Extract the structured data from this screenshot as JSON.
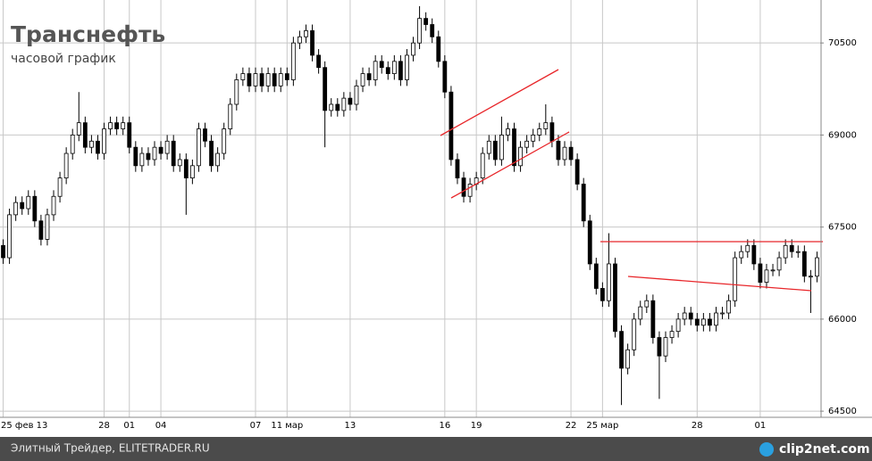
{
  "chart_data": {
    "type": "candlestick",
    "title": "Транснефть",
    "subtitle": "часовой график",
    "categories": [
      "25 фев 13",
      null,
      null,
      null,
      null,
      null,
      null,
      null,
      null,
      null,
      null,
      null,
      null,
      null,
      null,
      null,
      "28",
      null,
      null,
      null,
      "01",
      null,
      null,
      null,
      null,
      "04",
      null,
      null,
      null,
      null,
      null,
      null,
      null,
      null,
      null,
      null,
      null,
      null,
      null,
      null,
      "07",
      null,
      null,
      null,
      null,
      "11 мар",
      null,
      null,
      null,
      null,
      null,
      null,
      null,
      null,
      null,
      "13",
      null,
      null,
      null,
      null,
      null,
      null,
      null,
      null,
      null,
      null,
      null,
      null,
      null,
      null,
      "16",
      null,
      null,
      null,
      null,
      "19",
      null,
      null,
      null,
      null,
      null,
      null,
      null,
      null,
      null,
      null,
      null,
      null,
      null,
      null,
      "22",
      null,
      null,
      null,
      null,
      "25 мар",
      null,
      null,
      null,
      null,
      null,
      null,
      null,
      null,
      null,
      null,
      null,
      null,
      null,
      null,
      "28",
      null,
      null,
      null,
      null,
      null,
      null,
      null,
      null,
      null,
      "01",
      null,
      null,
      null,
      null,
      null,
      null,
      null,
      null,
      null
    ],
    "open": [
      67200,
      67000,
      67700,
      67900,
      67800,
      68000,
      67600,
      67300,
      67700,
      68000,
      68300,
      68700,
      69000,
      69200,
      68800,
      68900,
      68700,
      69100,
      69200,
      69100,
      69200,
      68800,
      68500,
      68700,
      68600,
      68800,
      68700,
      68900,
      68500,
      68600,
      68300,
      68500,
      69100,
      68900,
      68500,
      68700,
      69100,
      69500,
      69900,
      70000,
      69800,
      70000,
      69800,
      70000,
      69800,
      70000,
      69900,
      70500,
      70600,
      70700,
      70300,
      70100,
      69400,
      69500,
      69400,
      69600,
      69500,
      69800,
      70000,
      69900,
      70200,
      70100,
      70000,
      70200,
      69900,
      70300,
      70500,
      70900,
      70800,
      70600,
      70200,
      69700,
      68600,
      68300,
      68000,
      68200,
      68300,
      68700,
      68900,
      68600,
      69000,
      69100,
      68500,
      68800,
      68900,
      69000,
      69100,
      69200,
      68900,
      68600,
      68800,
      68600,
      68200,
      67600,
      66900,
      66500,
      66300,
      66900,
      65800,
      65200,
      65500,
      66000,
      66200,
      66300,
      65700,
      65400,
      65700,
      65800,
      66000,
      66100,
      66000,
      65900,
      66000,
      65900,
      66100,
      66100,
      66300,
      67000,
      67100,
      67200,
      66900,
      66600,
      66800,
      66800,
      67000,
      67200,
      67100,
      67100,
      66700,
      66700
    ],
    "high": [
      67300,
      67800,
      68000,
      68000,
      68100,
      68100,
      67700,
      67800,
      68100,
      68400,
      68800,
      69100,
      69700,
      69300,
      69000,
      69000,
      69200,
      69300,
      69300,
      69300,
      69300,
      68900,
      68800,
      68800,
      68900,
      68900,
      69000,
      69000,
      68700,
      68700,
      68600,
      69200,
      69200,
      69000,
      68800,
      69200,
      69600,
      70000,
      70100,
      70100,
      70100,
      70100,
      70100,
      70100,
      70100,
      70100,
      70600,
      70700,
      70800,
      70800,
      70400,
      70200,
      69600,
      69600,
      69700,
      69700,
      69900,
      70100,
      70100,
      70300,
      70300,
      70200,
      70300,
      70300,
      70400,
      70600,
      71100,
      71000,
      70900,
      70700,
      70300,
      69800,
      68700,
      68400,
      68300,
      68400,
      68800,
      69000,
      69000,
      69300,
      69200,
      69200,
      68900,
      69000,
      69100,
      69200,
      69500,
      69300,
      69000,
      68900,
      68900,
      68700,
      68300,
      67700,
      67000,
      66600,
      67400,
      67000,
      65900,
      65600,
      66100,
      66300,
      66400,
      66400,
      65800,
      65800,
      65900,
      66100,
      66200,
      66200,
      66100,
      66100,
      66100,
      66200,
      66200,
      66400,
      67100,
      67200,
      67300,
      67300,
      67000,
      66900,
      66900,
      67100,
      67300,
      67300,
      67200,
      67200,
      66800,
      67100
    ],
    "low": [
      66900,
      66900,
      67600,
      67700,
      67700,
      67500,
      67200,
      67200,
      67600,
      67900,
      68200,
      68600,
      68900,
      68700,
      68700,
      68600,
      68600,
      69000,
      69000,
      69000,
      68700,
      68400,
      68400,
      68500,
      68500,
      68600,
      68600,
      68400,
      68400,
      67700,
      68200,
      68400,
      68800,
      68400,
      68400,
      68600,
      69000,
      69400,
      69800,
      69700,
      69700,
      69700,
      69700,
      69700,
      69700,
      69800,
      69800,
      70400,
      70500,
      70200,
      70000,
      68800,
      69300,
      69300,
      69300,
      69400,
      69400,
      69700,
      69800,
      69800,
      70000,
      69900,
      69900,
      69800,
      69800,
      70200,
      70400,
      70700,
      70500,
      70100,
      69600,
      68500,
      68200,
      67900,
      67900,
      68100,
      68200,
      68600,
      68500,
      68500,
      68900,
      68400,
      68400,
      68700,
      68800,
      68900,
      69000,
      68800,
      68500,
      68500,
      68500,
      68100,
      67500,
      66800,
      66400,
      66200,
      66200,
      65700,
      64600,
      65100,
      65400,
      65900,
      66100,
      65600,
      64700,
      65300,
      65600,
      65700,
      65900,
      65900,
      65800,
      65800,
      65800,
      65800,
      66000,
      66000,
      66200,
      66900,
      67000,
      66800,
      66500,
      66500,
      66700,
      66700,
      66900,
      67000,
      67000,
      66600,
      66100,
      66600
    ],
    "close": [
      67000,
      67700,
      67900,
      67800,
      68000,
      67600,
      67300,
      67700,
      68000,
      68300,
      68700,
      69000,
      69200,
      68800,
      68900,
      68700,
      69100,
      69200,
      69100,
      69200,
      68800,
      68500,
      68700,
      68600,
      68800,
      68700,
      68900,
      68500,
      68600,
      68300,
      68500,
      69100,
      68900,
      68500,
      68700,
      69100,
      69500,
      69900,
      70000,
      69800,
      70000,
      69800,
      70000,
      69800,
      70000,
      69900,
      70500,
      70600,
      70700,
      70300,
      70100,
      69400,
      69500,
      69400,
      69600,
      69500,
      69800,
      70000,
      69900,
      70200,
      70100,
      70000,
      70200,
      69900,
      70300,
      70500,
      70900,
      70800,
      70600,
      70200,
      69700,
      68600,
      68300,
      68000,
      68200,
      68300,
      68700,
      68900,
      68600,
      69000,
      69100,
      68500,
      68800,
      68900,
      69000,
      69100,
      69200,
      68900,
      68600,
      68800,
      68600,
      68200,
      67600,
      66900,
      66500,
      66300,
      66900,
      65800,
      65200,
      65500,
      66000,
      66200,
      66300,
      65700,
      65400,
      65700,
      65800,
      66000,
      66100,
      66000,
      65900,
      66000,
      65900,
      66100,
      66100,
      66300,
      67000,
      67100,
      67200,
      66900,
      66600,
      66800,
      66800,
      67000,
      67200,
      67100,
      67100,
      66700,
      66700,
      67000
    ],
    "up_color": "#ffffff",
    "down_color": "#000000",
    "ylim": [
      64400,
      71200
    ],
    "yticks": [
      64500,
      66000,
      67500,
      69000,
      70500
    ],
    "grid": true,
    "footer": "Элитный Трейдер, ELITETRADER.RU",
    "watermark": "clip2net.com"
  }
}
